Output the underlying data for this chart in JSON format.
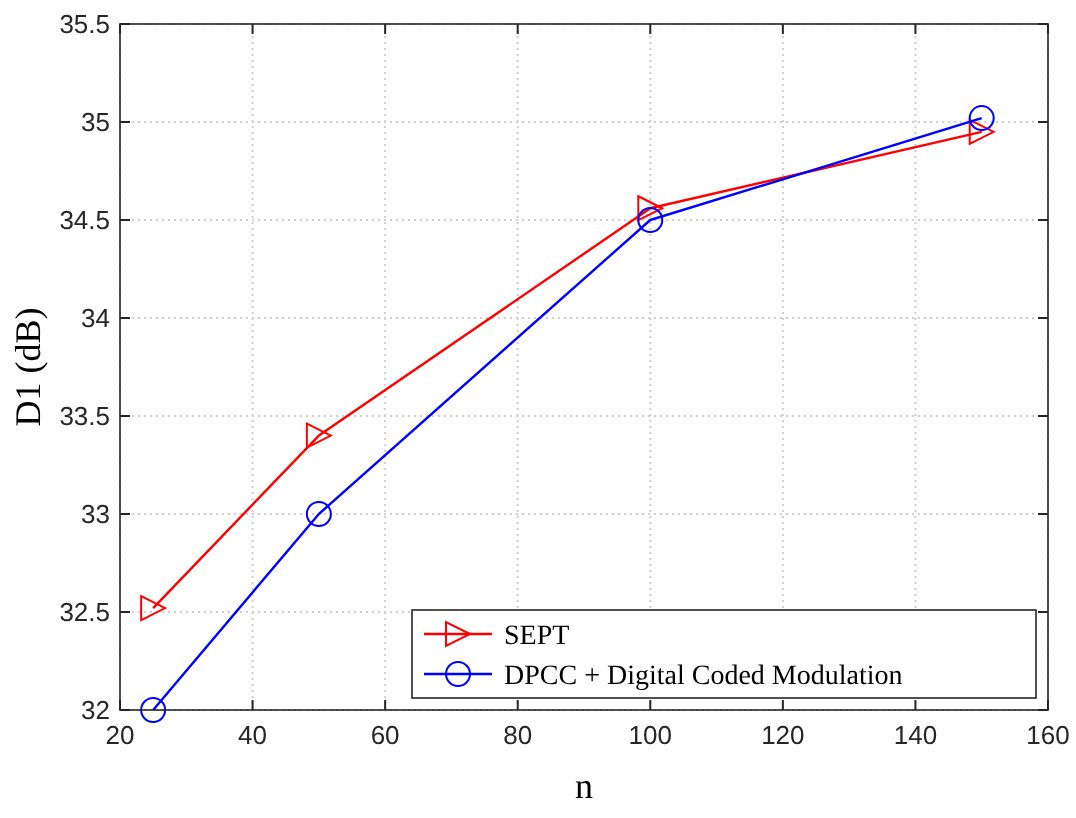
{
  "chart_data": {
    "type": "line",
    "xlabel": "n",
    "ylabel": "D1 (dB)",
    "x": [
      25,
      50,
      100,
      150
    ],
    "series": [
      {
        "name": "SEPT",
        "color": "#ff0000",
        "marker": "triangle",
        "values": [
          32.52,
          33.4,
          34.56,
          34.95
        ]
      },
      {
        "name": "DPCC + Digital Coded Modulation",
        "color": "#0000ff",
        "marker": "circle",
        "values": [
          32.0,
          33.0,
          34.5,
          35.02
        ]
      }
    ],
    "xlim": [
      20,
      160
    ],
    "xticks": [
      20,
      40,
      60,
      80,
      100,
      120,
      140,
      160
    ],
    "ylim": [
      32,
      35.5
    ],
    "yticks": [
      32,
      32.5,
      33,
      33.5,
      34,
      34.5,
      35,
      35.5
    ],
    "grid": true,
    "legend": "bottom right",
    "line_style": "solid"
  }
}
